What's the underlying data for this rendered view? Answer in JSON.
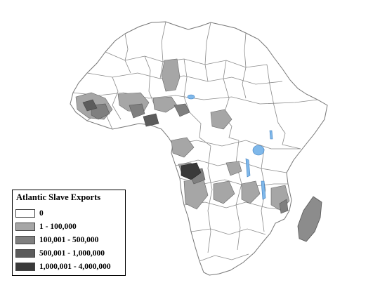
{
  "map": {
    "legend": {
      "title": "Atlantic Slave Exports",
      "items": [
        {
          "label": "0",
          "color": "#ffffff"
        },
        {
          "label": "1 - 100,000",
          "color": "#a6a6a6"
        },
        {
          "label": "100,001 - 500,000",
          "color": "#7f7f7f"
        },
        {
          "label": "500,001 - 1,000,000",
          "color": "#5c5c5c"
        },
        {
          "label": "1,000,001 - 4,000,000",
          "color": "#3a3a3a"
        }
      ]
    },
    "colors": {
      "land": "#ffffff",
      "border": "#7a7a7a",
      "lakes": "#7fb8ea",
      "madagascar": "#8c8c8c"
    }
  }
}
